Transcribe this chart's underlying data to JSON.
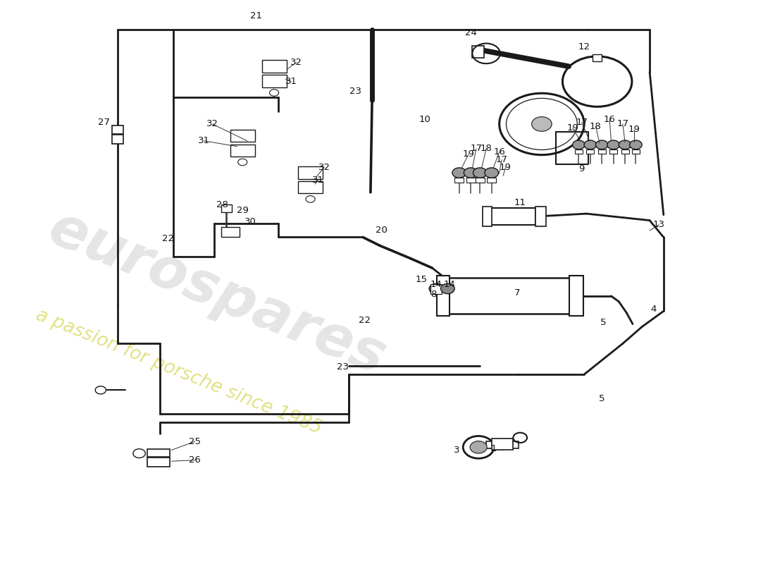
{
  "bg_color": "#ffffff",
  "line_color": "#1a1a1a",
  "watermark_text1": "eurospares",
  "watermark_text2": "a passion for porsche since 1985",
  "watermark_color1": "#cccccc",
  "watermark_color2": "#d4d450"
}
